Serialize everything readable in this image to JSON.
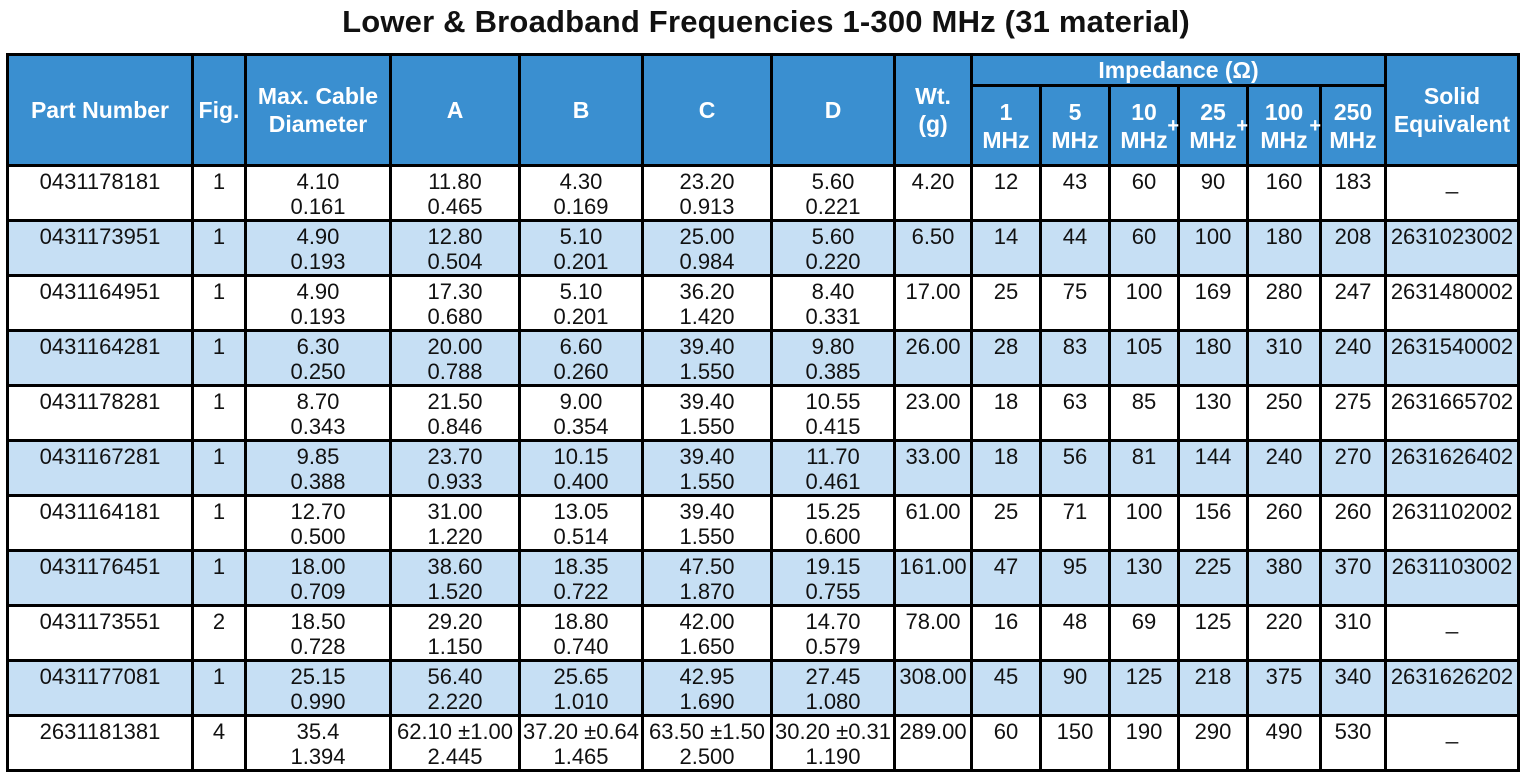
{
  "title": "Lower & Broadband Frequencies 1-300 MHz (31 material)",
  "headers": {
    "part_number": "Part Number",
    "fig": "Fig.",
    "max_cable_1": "Max. Cable",
    "max_cable_2": "Diameter",
    "a": "A",
    "b": "B",
    "c": "C",
    "d": "D",
    "wt_1": "Wt.",
    "wt_2": "(g)",
    "impedance": "Impedance (Ω)",
    "freqs": [
      {
        "num": "1",
        "unit": "MHz",
        "sup": ""
      },
      {
        "num": "5",
        "unit": "MHz",
        "sup": ""
      },
      {
        "num": "10",
        "unit": "MHz",
        "sup": "+"
      },
      {
        "num": "25",
        "unit": "MHz",
        "sup": "+"
      },
      {
        "num": "100",
        "unit": "MHz",
        "sup": "+"
      },
      {
        "num": "250",
        "unit": "MHz",
        "sup": ""
      }
    ],
    "solid_1": "Solid",
    "solid_2": "Equivalent"
  },
  "rows": [
    {
      "part": "0431178181",
      "fig": "1",
      "cable": [
        "4.10",
        "0.161"
      ],
      "a": [
        "11.80",
        "0.465"
      ],
      "b": [
        "4.30",
        "0.169"
      ],
      "c": [
        "23.20",
        "0.913"
      ],
      "d": [
        "5.60",
        "0.221"
      ],
      "wt": "4.20",
      "imp": [
        "12",
        "43",
        "60",
        "90",
        "160",
        "183"
      ],
      "solid": "_"
    },
    {
      "part": "0431173951",
      "fig": "1",
      "cable": [
        "4.90",
        "0.193"
      ],
      "a": [
        "12.80",
        "0.504"
      ],
      "b": [
        "5.10",
        "0.201"
      ],
      "c": [
        "25.00",
        "0.984"
      ],
      "d": [
        "5.60",
        "0.220"
      ],
      "wt": "6.50",
      "imp": [
        "14",
        "44",
        "60",
        "100",
        "180",
        "208"
      ],
      "solid": "2631023002"
    },
    {
      "part": "0431164951",
      "fig": "1",
      "cable": [
        "4.90",
        "0.193"
      ],
      "a": [
        "17.30",
        "0.680"
      ],
      "b": [
        "5.10",
        "0.201"
      ],
      "c": [
        "36.20",
        "1.420"
      ],
      "d": [
        "8.40",
        "0.331"
      ],
      "wt": "17.00",
      "imp": [
        "25",
        "75",
        "100",
        "169",
        "280",
        "247"
      ],
      "solid": "2631480002"
    },
    {
      "part": "0431164281",
      "fig": "1",
      "cable": [
        "6.30",
        "0.250"
      ],
      "a": [
        "20.00",
        "0.788"
      ],
      "b": [
        "6.60",
        "0.260"
      ],
      "c": [
        "39.40",
        "1.550"
      ],
      "d": [
        "9.80",
        "0.385"
      ],
      "wt": "26.00",
      "imp": [
        "28",
        "83",
        "105",
        "180",
        "310",
        "240"
      ],
      "solid": "2631540002"
    },
    {
      "part": "0431178281",
      "fig": "1",
      "cable": [
        "8.70",
        "0.343"
      ],
      "a": [
        "21.50",
        "0.846"
      ],
      "b": [
        "9.00",
        "0.354"
      ],
      "c": [
        "39.40",
        "1.550"
      ],
      "d": [
        "10.55",
        "0.415"
      ],
      "wt": "23.00",
      "imp": [
        "18",
        "63",
        "85",
        "130",
        "250",
        "275"
      ],
      "solid": "2631665702"
    },
    {
      "part": "0431167281",
      "fig": "1",
      "cable": [
        "9.85",
        "0.388"
      ],
      "a": [
        "23.70",
        "0.933"
      ],
      "b": [
        "10.15",
        "0.400"
      ],
      "c": [
        "39.40",
        "1.550"
      ],
      "d": [
        "11.70",
        "0.461"
      ],
      "wt": "33.00",
      "imp": [
        "18",
        "56",
        "81",
        "144",
        "240",
        "270"
      ],
      "solid": "2631626402"
    },
    {
      "part": "0431164181",
      "fig": "1",
      "cable": [
        "12.70",
        "0.500"
      ],
      "a": [
        "31.00",
        "1.220"
      ],
      "b": [
        "13.05",
        "0.514"
      ],
      "c": [
        "39.40",
        "1.550"
      ],
      "d": [
        "15.25",
        "0.600"
      ],
      "wt": "61.00",
      "imp": [
        "25",
        "71",
        "100",
        "156",
        "260",
        "260"
      ],
      "solid": "2631102002"
    },
    {
      "part": "0431176451",
      "fig": "1",
      "cable": [
        "18.00",
        "0.709"
      ],
      "a": [
        "38.60",
        "1.520"
      ],
      "b": [
        "18.35",
        "0.722"
      ],
      "c": [
        "47.50",
        "1.870"
      ],
      "d": [
        "19.15",
        "0.755"
      ],
      "wt": "161.00",
      "imp": [
        "47",
        "95",
        "130",
        "225",
        "380",
        "370"
      ],
      "solid": "2631103002"
    },
    {
      "part": "0431173551",
      "fig": "2",
      "cable": [
        "18.50",
        "0.728"
      ],
      "a": [
        "29.20",
        "1.150"
      ],
      "b": [
        "18.80",
        "0.740"
      ],
      "c": [
        "42.00",
        "1.650"
      ],
      "d": [
        "14.70",
        "0.579"
      ],
      "wt": "78.00",
      "imp": [
        "16",
        "48",
        "69",
        "125",
        "220",
        "310"
      ],
      "solid": "_"
    },
    {
      "part": "0431177081",
      "fig": "1",
      "cable": [
        "25.15",
        "0.990"
      ],
      "a": [
        "56.40",
        "2.220"
      ],
      "b": [
        "25.65",
        "1.010"
      ],
      "c": [
        "42.95",
        "1.690"
      ],
      "d": [
        "27.45",
        "1.080"
      ],
      "wt": "308.00",
      "imp": [
        "45",
        "90",
        "125",
        "218",
        "375",
        "340"
      ],
      "solid": "2631626202"
    },
    {
      "part": "2631181381",
      "fig": "4",
      "cable": [
        "35.4",
        "1.394"
      ],
      "a": [
        "62.10 ±1.00",
        "2.445"
      ],
      "b": [
        "37.20 ±0.64",
        "1.465"
      ],
      "c": [
        "63.50 ±1.50",
        "2.500"
      ],
      "d": [
        "30.20 ±0.31",
        "1.190"
      ],
      "wt": "289.00",
      "imp": [
        "60",
        "150",
        "190",
        "290",
        "490",
        "530"
      ],
      "solid": "_"
    }
  ]
}
